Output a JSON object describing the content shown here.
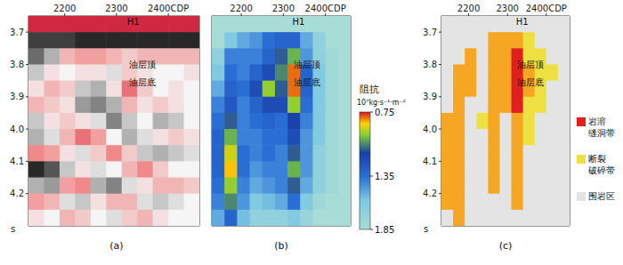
{
  "chart_data": [
    {
      "type": "heatmap",
      "panel": "(a)",
      "xlim": [
        2130,
        2460
      ],
      "xticks": [
        2200,
        2300,
        {
          "value": 2400,
          "label": "2400CDP"
        }
      ],
      "ylim": [
        3.65,
        4.3
      ],
      "yticks": [
        3.7,
        3.8,
        3.9,
        {
          "value": 4,
          "label": "4.0"
        },
        4.1,
        4.2
      ],
      "y_label": "s",
      "well": {
        "name": "H1",
        "x": 2315
      },
      "annotations": [
        {
          "text": "油层顶",
          "x": 2320,
          "y": 3.8
        },
        {
          "text": "油层底",
          "x": 2320,
          "y": 3.855
        }
      ],
      "color_range": [
        -1,
        1
      ],
      "cell_x": [
        2145,
        2175,
        2205,
        2235,
        2265,
        2295,
        2325,
        2355,
        2385,
        2415,
        2445
      ],
      "cell_y": [
        3.675,
        3.725,
        3.775,
        3.825,
        3.875,
        3.925,
        3.975,
        4.025,
        4.075,
        4.125,
        4.175,
        4.225,
        4.275
      ],
      "z": [
        [
          0.9,
          0.9,
          0.9,
          0.9,
          0.9,
          0.9,
          0.9,
          0.9,
          0.9,
          0.9,
          0.9
        ],
        [
          -0.8,
          -0.8,
          -0.8,
          -0.9,
          -0.9,
          -0.9,
          -0.9,
          -0.9,
          -0.9,
          -0.9,
          -0.9
        ],
        [
          -0.6,
          -0.3,
          0.3,
          0.4,
          0.4,
          0.3,
          0.2,
          0.3,
          0.3,
          0.3,
          0.3
        ],
        [
          -0.2,
          0.1,
          0,
          0.1,
          0.1,
          -0.1,
          0.2,
          0.1,
          0,
          0,
          0.1
        ],
        [
          0.1,
          0.3,
          0.2,
          -0.2,
          -0.3,
          0.1,
          0.6,
          0.2,
          0,
          0.1,
          0
        ],
        [
          0.3,
          0.2,
          0.1,
          -0.4,
          -0.5,
          -0.3,
          0.3,
          0.1,
          0.2,
          0.1,
          0
        ],
        [
          -0.2,
          0.1,
          0.2,
          0.1,
          -0.1,
          -0.5,
          -0.2,
          0,
          -0.3,
          -0.2,
          0
        ],
        [
          -0.3,
          -0.1,
          0.3,
          0.6,
          0.4,
          0,
          -0.3,
          -0.1,
          0.1,
          0.2,
          0.1
        ],
        [
          0.5,
          0.4,
          0.1,
          -0.1,
          0.2,
          0.5,
          0.2,
          -0.2,
          -0.3,
          -0.2,
          -0.1
        ],
        [
          -0.9,
          -0.7,
          -0.2,
          0.1,
          -0.1,
          0,
          0.3,
          0.5,
          0.2,
          0,
          0
        ],
        [
          -0.3,
          -0.4,
          0.4,
          0.5,
          -0.3,
          -0.5,
          -0.1,
          0.1,
          0.3,
          0.3,
          0.2
        ],
        [
          0.4,
          0.3,
          -0.1,
          -0.2,
          0.1,
          0.3,
          0.3,
          -0.1,
          -0.2,
          -0.1,
          0
        ],
        [
          0.1,
          0,
          0.3,
          0.2,
          0,
          -0.1,
          0.2,
          0.3,
          0.1,
          0,
          0
        ]
      ]
    },
    {
      "type": "heatmap",
      "panel": "(b)",
      "tick_labels": "x",
      "xlim": [
        2130,
        2460
      ],
      "xticks": [
        2200,
        2300,
        {
          "value": 2400,
          "label": "2400CDP"
        }
      ],
      "ylim": [
        3.65,
        4.3
      ],
      "yticks": [
        3.7,
        3.8,
        3.9,
        {
          "value": 4,
          "label": "4.0"
        },
        4.1,
        4.2
      ],
      "well": {
        "name": "H1",
        "x": 2315
      },
      "annotations": [
        {
          "text": "油层顶",
          "x": 2320,
          "y": 3.8
        },
        {
          "text": "油层底",
          "x": 2320,
          "y": 3.855
        }
      ],
      "colorbar": {
        "title": "阻抗",
        "unit": "10⁷kg·s⁻¹·m⁻²",
        "range": [
          0.75,
          1.85
        ],
        "ticks": [
          0.75,
          1.35,
          1.85
        ]
      },
      "cell_x": [
        2145,
        2175,
        2205,
        2235,
        2265,
        2295,
        2325,
        2355,
        2385,
        2415,
        2445
      ],
      "cell_y": [
        3.675,
        3.725,
        3.775,
        3.825,
        3.875,
        3.925,
        3.975,
        4.025,
        4.075,
        4.125,
        4.175,
        4.225,
        4.275
      ],
      "z": [
        [
          1.85,
          1.85,
          1.85,
          1.85,
          1.85,
          1.85,
          1.85,
          1.85,
          1.85,
          1.85,
          1.85
        ],
        [
          1.85,
          1.6,
          1.5,
          1.45,
          1.35,
          1.3,
          1.3,
          1.5,
          1.7,
          1.85,
          1.85
        ],
        [
          1.7,
          1.4,
          1.4,
          1.4,
          1.3,
          1.1,
          1.0,
          1.45,
          1.7,
          1.8,
          1.85
        ],
        [
          1.6,
          1.35,
          1.4,
          1.3,
          1.2,
          1.05,
          0.8,
          1.3,
          1.6,
          1.8,
          1.85
        ],
        [
          1.5,
          1.3,
          1.35,
          1.2,
          0.95,
          1.1,
          0.8,
          1.3,
          1.6,
          1.8,
          1.85
        ],
        [
          1.4,
          1.25,
          1.4,
          1.3,
          1.2,
          1.2,
          0.95,
          1.35,
          1.6,
          1.8,
          1.85
        ],
        [
          1.35,
          1.1,
          1.4,
          1.35,
          1.3,
          1.35,
          1.15,
          1.4,
          1.6,
          1.8,
          1.85
        ],
        [
          1.3,
          1.0,
          1.4,
          1.4,
          1.35,
          1.35,
          1.2,
          1.45,
          1.6,
          1.8,
          1.85
        ],
        [
          1.3,
          0.9,
          1.35,
          1.4,
          1.35,
          1.4,
          1.1,
          1.45,
          1.7,
          1.8,
          1.85
        ],
        [
          1.3,
          0.85,
          1.35,
          1.45,
          1.4,
          1.4,
          1.0,
          1.45,
          1.7,
          1.8,
          1.85
        ],
        [
          1.35,
          0.95,
          1.4,
          1.5,
          1.45,
          1.4,
          1.1,
          1.5,
          1.7,
          1.8,
          1.85
        ],
        [
          1.4,
          1.05,
          1.45,
          1.6,
          1.55,
          1.5,
          1.35,
          1.6,
          1.8,
          1.85,
          1.85
        ],
        [
          1.5,
          1.3,
          1.55,
          1.7,
          1.7,
          1.7,
          1.6,
          1.75,
          1.85,
          1.85,
          1.85
        ]
      ]
    },
    {
      "type": "heatmap",
      "panel": "(c)",
      "xlim": [
        2130,
        2460
      ],
      "xticks": [
        2200,
        2300,
        {
          "value": 2400,
          "label": "2400CDP"
        }
      ],
      "ylim": [
        3.65,
        4.3
      ],
      "yticks": [
        3.7,
        3.8,
        3.9,
        {
          "value": 4,
          "label": "4.0"
        },
        4.1,
        4.2
      ],
      "y_label": "s",
      "well": {
        "name": "H1",
        "x": 2315
      },
      "annotations": [
        {
          "text": "油层顶",
          "x": 2320,
          "y": 3.8
        },
        {
          "text": "油层底",
          "x": 2320,
          "y": 3.855
        }
      ],
      "legend": "right",
      "class_colors": [
        "#e4e4e4",
        "#e02020",
        "#eee040",
        "#f5a623"
      ],
      "legend_entries": [
        {
          "name": "岩溶缝洞带",
          "class": 1
        },
        {
          "name": "断裂破碎带",
          "class": 2
        },
        {
          "name": "围岩区",
          "class": 0
        }
      ],
      "cell_x": [
        2145,
        2175,
        2205,
        2235,
        2265,
        2295,
        2325,
        2355,
        2385,
        2415,
        2445
      ],
      "cell_y": [
        3.675,
        3.725,
        3.775,
        3.825,
        3.875,
        3.925,
        3.975,
        4.025,
        4.075,
        4.125,
        4.175,
        4.225,
        4.275
      ],
      "z": [
        [
          0,
          0,
          0,
          0,
          0,
          0,
          0,
          0,
          0,
          0,
          0
        ],
        [
          0,
          0,
          0,
          0,
          3,
          3,
          3,
          2,
          0,
          0,
          0
        ],
        [
          0,
          0,
          3,
          0,
          3,
          3,
          1,
          2,
          2,
          0,
          0
        ],
        [
          0,
          3,
          3,
          0,
          3,
          3,
          1,
          3,
          2,
          2,
          0
        ],
        [
          0,
          3,
          3,
          0,
          3,
          3,
          1,
          3,
          2,
          0,
          0
        ],
        [
          0,
          3,
          0,
          0,
          3,
          3,
          1,
          2,
          2,
          0,
          0
        ],
        [
          3,
          3,
          0,
          2,
          3,
          0,
          3,
          2,
          0,
          0,
          0
        ],
        [
          3,
          3,
          0,
          0,
          3,
          0,
          3,
          2,
          0,
          0,
          0
        ],
        [
          3,
          3,
          0,
          0,
          3,
          0,
          3,
          0,
          0,
          0,
          0
        ],
        [
          3,
          3,
          0,
          0,
          3,
          0,
          3,
          0,
          0,
          0,
          0
        ],
        [
          3,
          3,
          0,
          0,
          3,
          0,
          3,
          0,
          0,
          0,
          0
        ],
        [
          3,
          3,
          0,
          0,
          0,
          0,
          3,
          0,
          0,
          0,
          0
        ],
        [
          0,
          3,
          0,
          0,
          0,
          0,
          0,
          0,
          0,
          0,
          0
        ]
      ]
    }
  ]
}
